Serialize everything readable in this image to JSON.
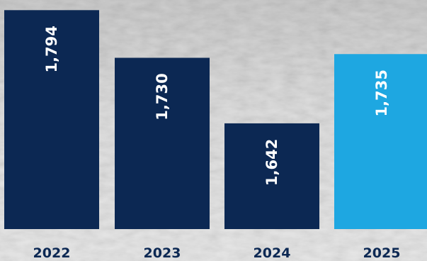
{
  "chart_data": {
    "type": "bar",
    "categories": [
      "2022",
      "2023",
      "2024",
      "2025"
    ],
    "values": [
      1794,
      1730,
      1642,
      1735
    ],
    "value_labels": [
      "1,794",
      "1,730",
      "1,642",
      "1,735"
    ],
    "title": "",
    "xlabel": "",
    "ylabel": "",
    "ylim": [
      1500,
      1800
    ],
    "grid": false,
    "legend": "none"
  },
  "colors": {
    "bar_default": "#0c2853",
    "bar_highlight": "#1ea7e1",
    "year_label": "#0c2853",
    "value_label": "#ffffff"
  },
  "highlight_index": 3
}
